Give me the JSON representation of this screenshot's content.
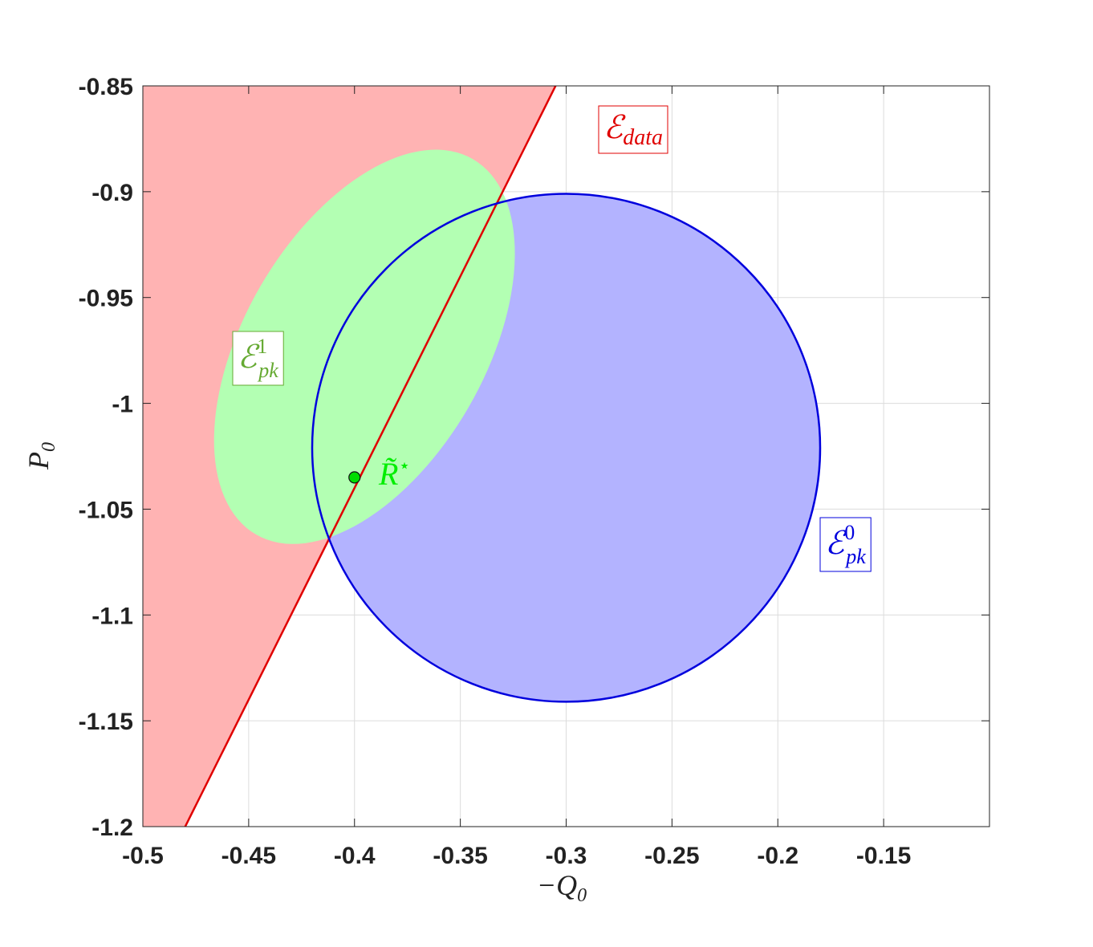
{
  "chart_data": {
    "type": "region",
    "x_label": {
      "base": "−Q",
      "sub": "0"
    },
    "y_label": {
      "base": "P",
      "sub": "0"
    },
    "xlim": [
      -0.5,
      -0.1
    ],
    "ylim": [
      -1.2,
      -0.85
    ],
    "xticks": [
      -0.5,
      -0.45,
      -0.4,
      -0.35,
      -0.3,
      -0.25,
      -0.2,
      -0.15
    ],
    "yticks": [
      -1.2,
      -1.15,
      -1.1,
      -1.05,
      -1,
      -0.95,
      -0.9,
      -0.85
    ],
    "grid": true,
    "half_plane": {
      "x": [
        -0.48,
        -0.305
      ],
      "y": [
        -1.2,
        -0.85
      ],
      "fill": "#ffb3b3",
      "line_color": "#e00000",
      "side": "left"
    },
    "circle": {
      "center": [
        -0.3,
        -1.021
      ],
      "radius": 0.12,
      "fill": "#b3b3ff",
      "stroke": "#0000dd"
    },
    "ellipse": {
      "center": [
        -0.3953,
        -0.9733
      ],
      "semi_axes": [
        0.1024,
        0.0569
      ],
      "angle": 60,
      "fill": "#b3ffb3"
    },
    "point": {
      "x": -0.4,
      "y": -1.035,
      "color": "#00dd00"
    },
    "annotations": [
      {
        "base": "ℰ",
        "sub": "data",
        "color": "#e00000"
      },
      {
        "base": "ℰ",
        "sub": "pk",
        "sup": "1",
        "color": "#66aa33"
      },
      {
        "base": "ℰ",
        "sub": "pk",
        "sup": "0",
        "color": "#0000dd"
      },
      {
        "base": "R̃",
        "sup": "⋆",
        "color": "#00ee00"
      }
    ]
  }
}
